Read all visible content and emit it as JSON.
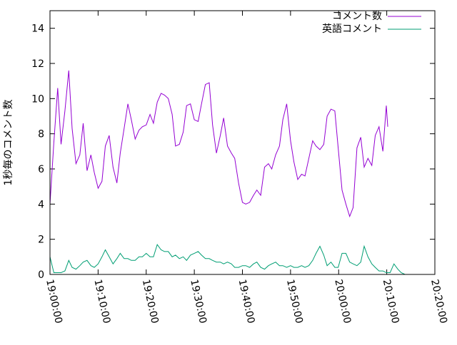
{
  "chart_data": {
    "type": "line",
    "ylabel": "1秒毎のコメント数",
    "xlabel": "",
    "ylim": [
      0,
      15
    ],
    "xlim": [
      "19:00:00",
      "20:20:00"
    ],
    "yticks": [
      0,
      2,
      4,
      6,
      8,
      10,
      12,
      14
    ],
    "ytick_labels": [
      "0",
      "2",
      "4",
      "6",
      "8",
      "10",
      "12",
      "14"
    ],
    "xticks": [
      "19:00:00",
      "19:10:00",
      "19:20:00",
      "19:30:00",
      "19:40:00",
      "19:50:00",
      "20:00:00",
      "20:10:00",
      "20:20:00"
    ],
    "xtick_minutes": [
      0,
      10,
      20,
      30,
      40,
      50,
      60,
      70,
      80
    ],
    "legend_position": "top-right",
    "grid": false,
    "series": [
      {
        "name": "コメント数",
        "color": "#9400d3",
        "x_minutes": [
          0,
          0.8,
          1.6,
          2.3,
          3.1,
          3.9,
          4.6,
          5.4,
          6.2,
          6.9,
          7.7,
          8.5,
          9.2,
          10.0,
          10.8,
          11.5,
          12.3,
          13.1,
          13.9,
          14.6,
          15.4,
          16.2,
          16.9,
          17.7,
          18.5,
          19.2,
          20.0,
          20.8,
          21.5,
          22.3,
          23.1,
          23.8,
          24.6,
          25.4,
          26.1,
          26.9,
          27.7,
          28.4,
          29.2,
          30.0,
          30.8,
          31.5,
          32.3,
          33.1,
          33.8,
          34.6,
          35.4,
          36.1,
          36.9,
          37.7,
          38.4,
          39.2,
          40.0,
          40.7,
          41.5,
          42.3,
          43.0,
          43.8,
          44.6,
          45.4,
          46.1,
          46.9,
          47.7,
          48.4,
          49.2,
          50.0,
          50.7,
          51.5,
          52.3,
          53.0,
          53.8,
          54.6,
          55.3,
          56.1,
          56.9,
          57.6,
          58.4,
          59.2,
          59.9,
          60.7,
          61.5,
          62.3,
          63.0,
          63.8,
          64.6,
          65.3,
          66.1,
          66.9,
          67.6,
          68.4,
          69.2,
          69.9,
          70.2
        ],
        "values": [
          4.0,
          7.5,
          10.6,
          7.4,
          9.3,
          11.6,
          8.3,
          6.3,
          6.8,
          8.6,
          5.9,
          6.8,
          5.8,
          4.9,
          5.3,
          7.3,
          7.9,
          6.1,
          5.2,
          6.9,
          8.3,
          9.7,
          8.8,
          7.7,
          8.2,
          8.4,
          8.5,
          9.1,
          8.6,
          9.8,
          10.3,
          10.2,
          10.0,
          9.1,
          7.3,
          7.4,
          8.1,
          9.6,
          9.7,
          8.8,
          8.7,
          9.7,
          10.8,
          10.9,
          8.5,
          6.9,
          7.9,
          8.9,
          7.3,
          6.9,
          6.6,
          5.2,
          4.1,
          4.0,
          4.1,
          4.5,
          4.8,
          4.5,
          6.1,
          6.3,
          6.0,
          6.8,
          7.3,
          8.8,
          9.7,
          7.6,
          6.4,
          5.4,
          5.7,
          5.6,
          6.6,
          7.6,
          7.3,
          7.1,
          7.4,
          9.0,
          9.4,
          9.3,
          7.2,
          4.8,
          4.0,
          3.3,
          3.8,
          7.2,
          7.8,
          6.1,
          6.6,
          6.2,
          7.9,
          8.4,
          7.0,
          9.6,
          8.4
        ]
      },
      {
        "name": "英語コメント",
        "color": "#009e73",
        "x_minutes": [
          0,
          0.8,
          1.6,
          2.3,
          3.1,
          3.9,
          4.6,
          5.4,
          6.2,
          6.9,
          7.7,
          8.5,
          9.2,
          10.0,
          10.8,
          11.5,
          12.3,
          13.1,
          13.9,
          14.6,
          15.4,
          16.2,
          16.9,
          17.7,
          18.5,
          19.2,
          20.0,
          20.8,
          21.5,
          22.3,
          23.1,
          23.8,
          24.6,
          25.4,
          26.1,
          26.9,
          27.7,
          28.4,
          29.2,
          30.0,
          30.8,
          31.5,
          32.3,
          33.1,
          33.8,
          34.6,
          35.4,
          36.1,
          36.9,
          37.7,
          38.4,
          39.2,
          40.0,
          40.7,
          41.5,
          42.3,
          43.0,
          43.8,
          44.6,
          45.4,
          46.1,
          46.9,
          47.7,
          48.4,
          49.2,
          50.0,
          50.7,
          51.5,
          52.3,
          53.0,
          53.8,
          54.6,
          55.3,
          56.1,
          56.9,
          57.6,
          58.4,
          59.2,
          59.9,
          60.7,
          61.5,
          62.3,
          63.0,
          63.8,
          64.6,
          65.3,
          66.1,
          66.9,
          67.6,
          68.4,
          69.2,
          69.9,
          70.7,
          71.5,
          72.3,
          73.0,
          73.8
        ],
        "values": [
          1.0,
          0.1,
          0.1,
          0.1,
          0.2,
          0.8,
          0.4,
          0.3,
          0.5,
          0.7,
          0.8,
          0.5,
          0.4,
          0.6,
          1.0,
          1.4,
          1.0,
          0.6,
          0.9,
          1.2,
          0.9,
          0.9,
          0.8,
          0.8,
          1.0,
          1.0,
          1.2,
          1.0,
          1.0,
          1.7,
          1.4,
          1.3,
          1.3,
          1.0,
          1.1,
          0.9,
          1.0,
          0.8,
          1.1,
          1.2,
          1.3,
          1.1,
          0.9,
          0.9,
          0.8,
          0.7,
          0.7,
          0.6,
          0.7,
          0.6,
          0.4,
          0.4,
          0.5,
          0.5,
          0.4,
          0.6,
          0.7,
          0.4,
          0.3,
          0.5,
          0.6,
          0.7,
          0.5,
          0.5,
          0.4,
          0.5,
          0.4,
          0.4,
          0.5,
          0.4,
          0.5,
          0.8,
          1.2,
          1.6,
          1.1,
          0.5,
          0.7,
          0.4,
          0.4,
          1.2,
          1.2,
          0.7,
          0.6,
          0.5,
          0.7,
          1.6,
          1.0,
          0.6,
          0.4,
          0.2,
          0.2,
          0.1,
          0.1,
          0.6,
          0.3,
          0.1,
          0.0
        ]
      }
    ]
  }
}
